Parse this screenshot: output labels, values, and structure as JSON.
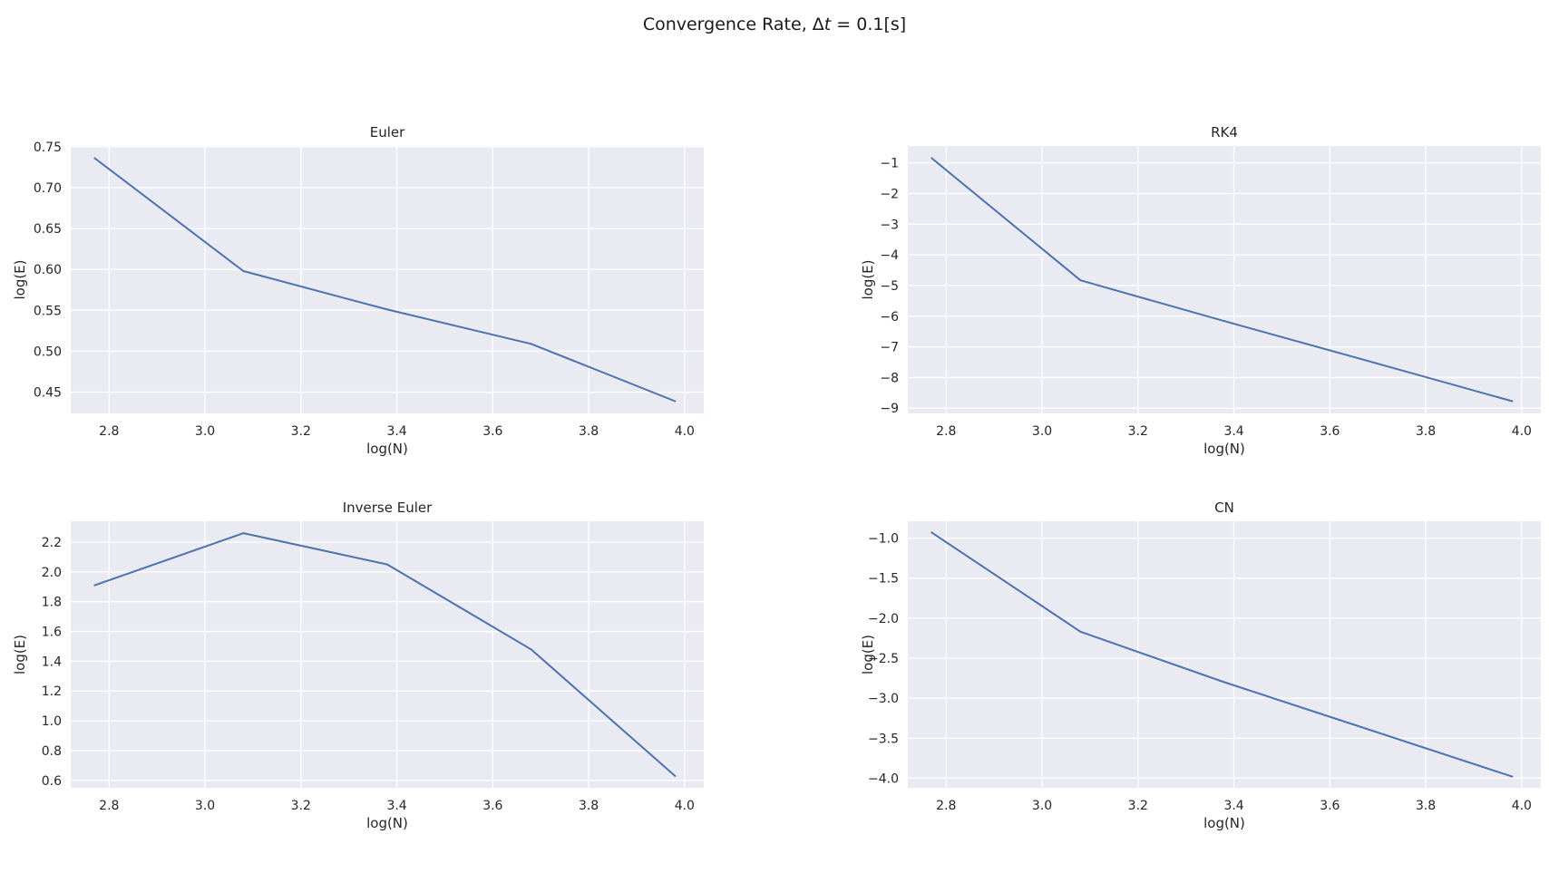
{
  "figure": {
    "suptitle_prefix": "Convergence Rate, Δ",
    "suptitle_var": "t",
    "suptitle_suffix": " = 0.1[s]"
  },
  "colors": {
    "line": "#4c72b0",
    "panel_bg": "#eaeaf2",
    "grid": "#ffffff"
  },
  "chart_data": [
    {
      "type": "line",
      "title": "Euler",
      "xlabel": "log(N)",
      "ylabel": "log(E)",
      "x": [
        2.77,
        3.08,
        3.38,
        3.68,
        3.98
      ],
      "y": [
        0.736,
        0.598,
        0.551,
        0.509,
        0.439
      ],
      "xlim": [
        2.72,
        4.04
      ],
      "ylim": [
        0.424,
        0.751
      ],
      "xticks": [
        2.8,
        3.0,
        3.2,
        3.4,
        3.6,
        3.8,
        4.0
      ],
      "xtick_labels": [
        "2.8",
        "3.0",
        "3.2",
        "3.4",
        "3.6",
        "3.8",
        "4.0"
      ],
      "yticks": [
        0.45,
        0.5,
        0.55,
        0.6,
        0.65,
        0.7,
        0.75
      ],
      "ytick_labels": [
        "0.45",
        "0.50",
        "0.55",
        "0.60",
        "0.65",
        "0.70",
        "0.75"
      ],
      "grid": true
    },
    {
      "type": "line",
      "title": "RK4",
      "xlabel": "log(N)",
      "ylabel": "log(E)",
      "x": [
        2.77,
        3.08,
        3.38,
        3.68,
        3.98
      ],
      "y": [
        -0.85,
        -4.83,
        -6.16,
        -7.46,
        -8.77
      ],
      "xlim": [
        2.72,
        4.04
      ],
      "ylim": [
        -9.17,
        -0.45
      ],
      "xticks": [
        2.8,
        3.0,
        3.2,
        3.4,
        3.6,
        3.8,
        4.0
      ],
      "xtick_labels": [
        "2.8",
        "3.0",
        "3.2",
        "3.4",
        "3.6",
        "3.8",
        "4.0"
      ],
      "yticks": [
        -9,
        -8,
        -7,
        -6,
        -5,
        -4,
        -3,
        -2,
        -1
      ],
      "ytick_labels": [
        "−9",
        "−8",
        "−7",
        "−6",
        "−5",
        "−4",
        "−3",
        "−2",
        "−1"
      ],
      "grid": true
    },
    {
      "type": "line",
      "title": "Inverse Euler",
      "xlabel": "log(N)",
      "ylabel": "log(E)",
      "x": [
        2.77,
        3.08,
        3.38,
        3.68,
        3.98
      ],
      "y": [
        1.91,
        2.26,
        2.05,
        1.48,
        0.63
      ],
      "xlim": [
        2.72,
        4.04
      ],
      "ylim": [
        0.55,
        2.34
      ],
      "xticks": [
        2.8,
        3.0,
        3.2,
        3.4,
        3.6,
        3.8,
        4.0
      ],
      "xtick_labels": [
        "2.8",
        "3.0",
        "3.2",
        "3.4",
        "3.6",
        "3.8",
        "4.0"
      ],
      "yticks": [
        0.6,
        0.8,
        1.0,
        1.2,
        1.4,
        1.6,
        1.8,
        2.0,
        2.2
      ],
      "ytick_labels": [
        "0.6",
        "0.8",
        "1.0",
        "1.2",
        "1.4",
        "1.6",
        "1.8",
        "2.0",
        "2.2"
      ],
      "grid": true
    },
    {
      "type": "line",
      "title": "CN",
      "xlabel": "log(N)",
      "ylabel": "log(E)",
      "x": [
        2.77,
        3.08,
        3.38,
        3.68,
        3.98
      ],
      "y": [
        -0.93,
        -2.17,
        -2.8,
        -3.39,
        -3.98
      ],
      "xlim": [
        2.72,
        4.04
      ],
      "ylim": [
        -4.12,
        -0.79
      ],
      "xticks": [
        2.8,
        3.0,
        3.2,
        3.4,
        3.6,
        3.8,
        4.0
      ],
      "xtick_labels": [
        "2.8",
        "3.0",
        "3.2",
        "3.4",
        "3.6",
        "3.8",
        "4.0"
      ],
      "yticks": [
        -4.0,
        -3.5,
        -3.0,
        -2.5,
        -2.0,
        -1.5,
        -1.0
      ],
      "ytick_labels": [
        "−4.0",
        "−3.5",
        "−3.0",
        "−2.5",
        "−2.0",
        "−1.5",
        "−1.0"
      ],
      "grid": true
    }
  ]
}
